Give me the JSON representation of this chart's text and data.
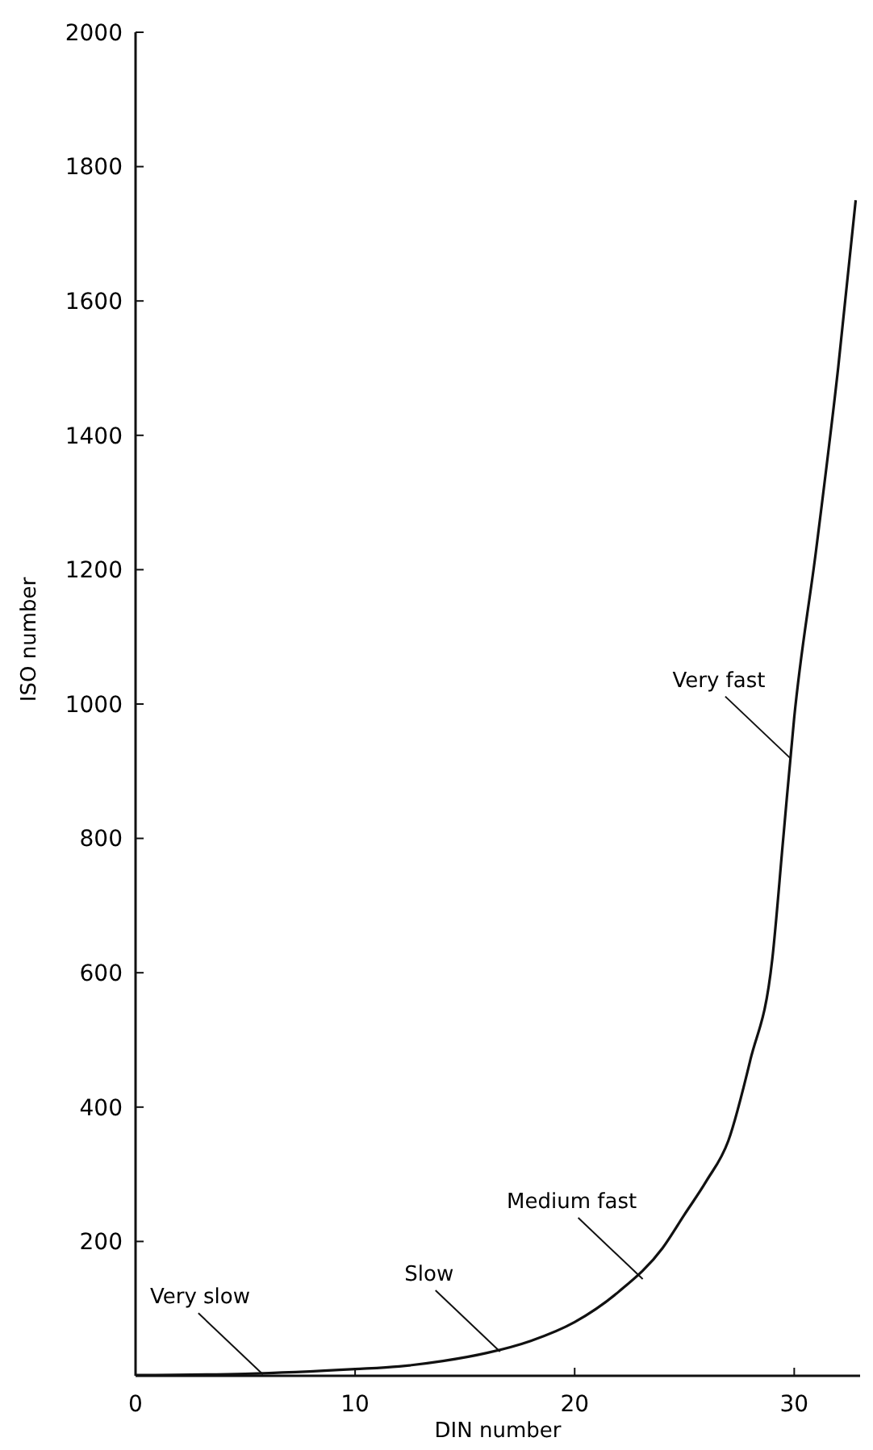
{
  "chart_data": {
    "type": "line",
    "xlabel": "DIN number",
    "ylabel": "ISO number",
    "x": [
      0,
      5,
      10,
      12,
      14,
      16,
      18,
      20,
      22,
      24,
      25,
      26,
      27,
      28,
      29,
      29.5,
      30,
      31,
      32,
      32.8
    ],
    "series": [
      {
        "color": "#111111",
        "values": [
          1,
          3,
          10,
          14,
          22,
          34,
          52,
          80,
          125,
          190,
          240,
          290,
          350,
          470,
          620,
          800,
          980,
          1230,
          1500,
          1750
        ]
      }
    ],
    "xlim": [
      0,
      33
    ],
    "ylim": [
      0,
      2000
    ],
    "xticks": [
      0,
      10,
      20,
      30
    ],
    "yticks": [
      200,
      400,
      600,
      800,
      1000,
      1200,
      1400,
      1600,
      1800,
      2000
    ],
    "grid": false,
    "marker": "none",
    "line_style": "solid",
    "annotations": [
      {
        "text": "Very fast",
        "x": 29.8,
        "y": 920
      },
      {
        "text": "Medium fast",
        "x": 23.1,
        "y": 144
      },
      {
        "text": "Slow",
        "x": 16.6,
        "y": 36
      },
      {
        "text": "Very slow",
        "x": 5.8,
        "y": 2
      }
    ]
  }
}
